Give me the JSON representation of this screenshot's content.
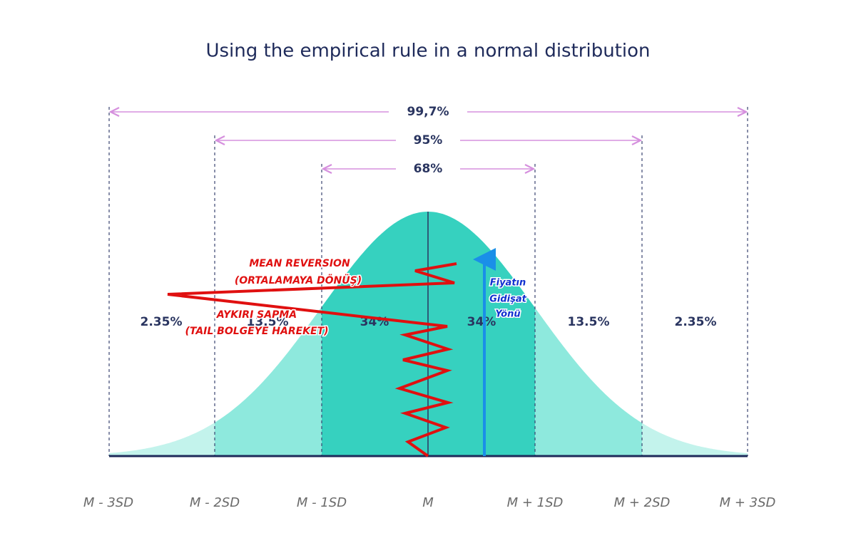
{
  "title": "Using the empirical rule in a normal distribution",
  "ranges": [
    "99,7%",
    "95%",
    "68%"
  ],
  "regions": [
    "2.35%",
    "13.5%",
    "34%",
    "34%",
    "13.5%",
    "2.35%"
  ],
  "axis_labels": [
    "M - 3SD",
    "M - 2SD",
    "M - 1SD",
    "M",
    "M + 1SD",
    "M + 2SD",
    "M + 3SD"
  ],
  "annotations": {
    "mean_reversion": [
      "MEAN REVERSION",
      "(ORTALAMAYA DÖNÜŞ)"
    ],
    "tail_move": [
      "AYKIRI SAPMA",
      "(TAIL BOLGEYE HAREKET)"
    ],
    "price_direction": [
      "Fiyatın",
      "Gidişat",
      "Yönü"
    ]
  }
}
